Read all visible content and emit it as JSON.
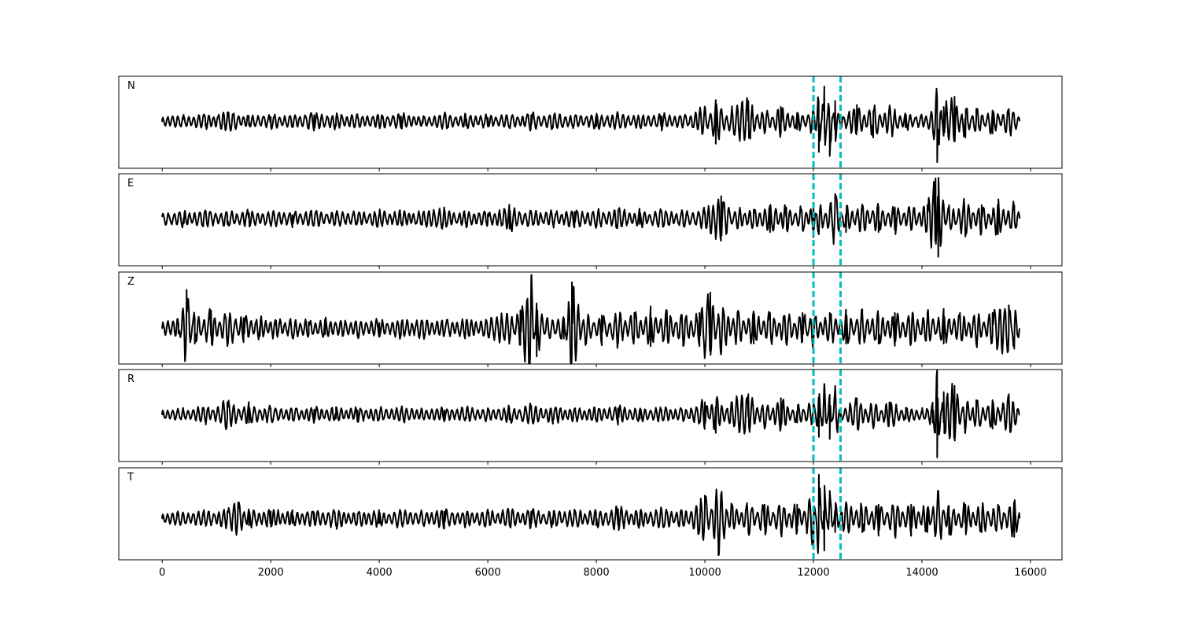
{
  "chart_data": {
    "type": "line",
    "layout": "stacked-panels",
    "x_axis": {
      "xlim": [
        -800,
        16580
      ],
      "ticks": [
        0,
        2000,
        4000,
        6000,
        8000,
        10000,
        12000,
        14000,
        16000
      ],
      "tick_labels": [
        "0",
        "2000",
        "4000",
        "6000",
        "8000",
        "10000",
        "12000",
        "14000",
        "16000"
      ],
      "xlabel": ""
    },
    "x_range": [
      0,
      15800
    ],
    "markers": {
      "color": "#00bfbf",
      "style": "dashed",
      "x": [
        12000,
        12500
      ]
    },
    "series_color": "#000000",
    "grid": false,
    "panels": [
      {
        "label": "N",
        "ylim": [
          -1.15,
          1.1
        ],
        "points": [
          [
            0,
            0.0
          ],
          [
            400,
            0.05
          ],
          [
            800,
            -0.12
          ],
          [
            1200,
            0.2
          ],
          [
            1600,
            -0.1
          ],
          [
            2000,
            0.1
          ],
          [
            2400,
            -0.08
          ],
          [
            2800,
            0.15
          ],
          [
            3200,
            -0.12
          ],
          [
            3600,
            0.1
          ],
          [
            4000,
            -0.1
          ],
          [
            4400,
            0.12
          ],
          [
            4800,
            -0.05
          ],
          [
            5200,
            0.12
          ],
          [
            5600,
            -0.1
          ],
          [
            6000,
            0.08
          ],
          [
            6400,
            -0.12
          ],
          [
            6800,
            0.15
          ],
          [
            7200,
            -0.15
          ],
          [
            7600,
            0.1
          ],
          [
            8000,
            -0.12
          ],
          [
            8400,
            0.15
          ],
          [
            8800,
            -0.1
          ],
          [
            9200,
            0.12
          ],
          [
            9600,
            -0.1
          ],
          [
            10000,
            0.35
          ],
          [
            10200,
            -0.55
          ],
          [
            10500,
            0.3
          ],
          [
            10800,
            0.5
          ],
          [
            11100,
            -0.3
          ],
          [
            11400,
            0.35
          ],
          [
            11700,
            -0.2
          ],
          [
            12000,
            0.25
          ],
          [
            12100,
            -0.75
          ],
          [
            12200,
            0.85
          ],
          [
            12300,
            -0.85
          ],
          [
            12400,
            0.5
          ],
          [
            12500,
            -0.1
          ],
          [
            12800,
            0.4
          ],
          [
            13100,
            -0.4
          ],
          [
            13400,
            0.35
          ],
          [
            13700,
            -0.15
          ],
          [
            14000,
            0.1
          ],
          [
            14200,
            -0.2
          ],
          [
            14280,
            -1.0
          ],
          [
            14400,
            0.35
          ],
          [
            14600,
            0.6
          ],
          [
            14800,
            -0.4
          ],
          [
            15000,
            0.3
          ],
          [
            15300,
            -0.3
          ],
          [
            15600,
            0.3
          ],
          [
            15800,
            0.0
          ]
        ]
      },
      {
        "label": "E",
        "ylim": [
          -1.05,
          1.0
        ],
        "points": [
          [
            0,
            0.05
          ],
          [
            400,
            -0.1
          ],
          [
            800,
            0.15
          ],
          [
            1200,
            -0.12
          ],
          [
            1600,
            0.12
          ],
          [
            2000,
            -0.1
          ],
          [
            2400,
            0.08
          ],
          [
            2800,
            -0.12
          ],
          [
            3200,
            0.1
          ],
          [
            3600,
            -0.08
          ],
          [
            4000,
            0.1
          ],
          [
            4400,
            -0.1
          ],
          [
            4800,
            0.08
          ],
          [
            5200,
            0.15
          ],
          [
            5600,
            -0.1
          ],
          [
            6000,
            0.1
          ],
          [
            6400,
            -0.22
          ],
          [
            6800,
            0.12
          ],
          [
            7200,
            -0.1
          ],
          [
            7600,
            0.15
          ],
          [
            8000,
            -0.15
          ],
          [
            8400,
            0.18
          ],
          [
            8800,
            -0.12
          ],
          [
            9200,
            0.15
          ],
          [
            9600,
            -0.1
          ],
          [
            10000,
            0.15
          ],
          [
            10300,
            0.5
          ],
          [
            10600,
            -0.2
          ],
          [
            10900,
            0.2
          ],
          [
            11200,
            -0.3
          ],
          [
            11500,
            0.25
          ],
          [
            11800,
            -0.25
          ],
          [
            12000,
            0.3
          ],
          [
            12100,
            -0.35
          ],
          [
            12400,
            0.55
          ],
          [
            12600,
            -0.3
          ],
          [
            12900,
            0.3
          ],
          [
            13200,
            -0.3
          ],
          [
            13500,
            0.25
          ],
          [
            13800,
            -0.25
          ],
          [
            14100,
            0.3
          ],
          [
            14250,
            0.9
          ],
          [
            14300,
            -0.85
          ],
          [
            14500,
            0.3
          ],
          [
            14800,
            -0.4
          ],
          [
            15100,
            0.3
          ],
          [
            15400,
            -0.35
          ],
          [
            15700,
            0.3
          ],
          [
            15800,
            0.0
          ]
        ]
      },
      {
        "label": "Z",
        "ylim": [
          -0.7,
          1.1
        ],
        "points": [
          [
            0,
            0.0
          ],
          [
            300,
            -0.1
          ],
          [
            450,
            0.75
          ],
          [
            600,
            -0.3
          ],
          [
            900,
            0.35
          ],
          [
            1200,
            -0.35
          ],
          [
            1500,
            0.2
          ],
          [
            1800,
            -0.15
          ],
          [
            2100,
            0.15
          ],
          [
            2400,
            -0.15
          ],
          [
            2700,
            0.12
          ],
          [
            3000,
            -0.12
          ],
          [
            3300,
            0.1
          ],
          [
            3600,
            -0.1
          ],
          [
            4000,
            0.1
          ],
          [
            4400,
            -0.12
          ],
          [
            4800,
            0.12
          ],
          [
            5200,
            -0.1
          ],
          [
            5600,
            0.12
          ],
          [
            6000,
            -0.1
          ],
          [
            6400,
            -0.25
          ],
          [
            6600,
            0.35
          ],
          [
            6800,
            1.0
          ],
          [
            6900,
            -0.55
          ],
          [
            7100,
            0.2
          ],
          [
            7400,
            -0.2
          ],
          [
            7550,
            0.9
          ],
          [
            7800,
            -0.25
          ],
          [
            8100,
            0.25
          ],
          [
            8400,
            -0.3
          ],
          [
            8700,
            0.3
          ],
          [
            9000,
            -0.35
          ],
          [
            9300,
            0.35
          ],
          [
            9600,
            -0.35
          ],
          [
            9900,
            0.3
          ],
          [
            10100,
            0.7
          ],
          [
            10300,
            -0.5
          ],
          [
            10600,
            0.3
          ],
          [
            10900,
            -0.3
          ],
          [
            11200,
            0.3
          ],
          [
            11500,
            -0.3
          ],
          [
            11800,
            0.3
          ],
          [
            12000,
            -0.3
          ],
          [
            12300,
            0.3
          ],
          [
            12600,
            -0.3
          ],
          [
            12900,
            0.3
          ],
          [
            13200,
            -0.3
          ],
          [
            13500,
            0.3
          ],
          [
            13800,
            -0.3
          ],
          [
            14100,
            0.3
          ],
          [
            14400,
            -0.3
          ],
          [
            14700,
            0.3
          ],
          [
            15000,
            -0.3
          ],
          [
            15300,
            0.3
          ],
          [
            15600,
            0.45
          ],
          [
            15700,
            -0.4
          ],
          [
            15800,
            0.0
          ]
        ]
      },
      {
        "label": "R",
        "ylim": [
          -1.15,
          1.1
        ],
        "points": [
          [
            0,
            0.0
          ],
          [
            400,
            0.05
          ],
          [
            800,
            -0.15
          ],
          [
            1200,
            0.3
          ],
          [
            1600,
            -0.2
          ],
          [
            2000,
            0.15
          ],
          [
            2400,
            -0.1
          ],
          [
            2800,
            0.12
          ],
          [
            3200,
            -0.1
          ],
          [
            3600,
            0.1
          ],
          [
            4000,
            -0.1
          ],
          [
            4400,
            0.12
          ],
          [
            4800,
            -0.05
          ],
          [
            5200,
            0.1
          ],
          [
            5600,
            -0.1
          ],
          [
            6000,
            0.08
          ],
          [
            6400,
            -0.12
          ],
          [
            6800,
            0.2
          ],
          [
            7200,
            -0.15
          ],
          [
            7600,
            0.1
          ],
          [
            8000,
            -0.12
          ],
          [
            8400,
            0.15
          ],
          [
            8800,
            -0.1
          ],
          [
            9200,
            0.12
          ],
          [
            9600,
            -0.1
          ],
          [
            10000,
            0.3
          ],
          [
            10200,
            -0.45
          ],
          [
            10500,
            0.3
          ],
          [
            10800,
            0.5
          ],
          [
            11100,
            -0.3
          ],
          [
            11400,
            0.4
          ],
          [
            11700,
            -0.2
          ],
          [
            12000,
            0.3
          ],
          [
            12100,
            -0.55
          ],
          [
            12200,
            0.75
          ],
          [
            12300,
            -0.6
          ],
          [
            12400,
            0.7
          ],
          [
            12500,
            -0.1
          ],
          [
            12800,
            0.4
          ],
          [
            13100,
            -0.3
          ],
          [
            13400,
            0.3
          ],
          [
            13700,
            -0.1
          ],
          [
            14000,
            0.05
          ],
          [
            14200,
            -0.2
          ],
          [
            14280,
            -1.05
          ],
          [
            14400,
            0.55
          ],
          [
            14600,
            0.7
          ],
          [
            14800,
            -0.4
          ],
          [
            15000,
            0.35
          ],
          [
            15300,
            -0.35
          ],
          [
            15600,
            0.5
          ],
          [
            15800,
            0.0
          ]
        ]
      },
      {
        "label": "T",
        "ylim": [
          -0.9,
          1.1
        ],
        "points": [
          [
            0,
            0.0
          ],
          [
            400,
            0.05
          ],
          [
            800,
            -0.1
          ],
          [
            1200,
            0.15
          ],
          [
            1400,
            0.35
          ],
          [
            1600,
            -0.15
          ],
          [
            2000,
            0.15
          ],
          [
            2400,
            -0.1
          ],
          [
            2800,
            0.12
          ],
          [
            3200,
            -0.15
          ],
          [
            3600,
            0.1
          ],
          [
            4000,
            -0.1
          ],
          [
            4400,
            0.12
          ],
          [
            4800,
            -0.08
          ],
          [
            5200,
            0.15
          ],
          [
            5600,
            -0.1
          ],
          [
            6000,
            0.12
          ],
          [
            6400,
            -0.15
          ],
          [
            6800,
            0.15
          ],
          [
            7200,
            -0.12
          ],
          [
            7600,
            0.15
          ],
          [
            8000,
            -0.15
          ],
          [
            8400,
            0.2
          ],
          [
            8800,
            -0.15
          ],
          [
            9200,
            0.2
          ],
          [
            9600,
            -0.15
          ],
          [
            10000,
            0.5
          ],
          [
            10250,
            -0.8
          ],
          [
            10500,
            0.3
          ],
          [
            10800,
            -0.3
          ],
          [
            11100,
            0.3
          ],
          [
            11400,
            -0.3
          ],
          [
            11700,
            0.3
          ],
          [
            12000,
            -0.6
          ],
          [
            12100,
            0.95
          ],
          [
            12200,
            -0.7
          ],
          [
            12300,
            0.6
          ],
          [
            12400,
            -0.3
          ],
          [
            12600,
            0.35
          ],
          [
            12900,
            -0.3
          ],
          [
            13200,
            0.3
          ],
          [
            13500,
            -0.35
          ],
          [
            13800,
            0.3
          ],
          [
            14100,
            -0.3
          ],
          [
            14300,
            0.6
          ],
          [
            14500,
            -0.35
          ],
          [
            14800,
            0.3
          ],
          [
            15100,
            -0.3
          ],
          [
            15400,
            0.3
          ],
          [
            15700,
            -0.4
          ],
          [
            15800,
            0.0
          ]
        ]
      }
    ]
  }
}
